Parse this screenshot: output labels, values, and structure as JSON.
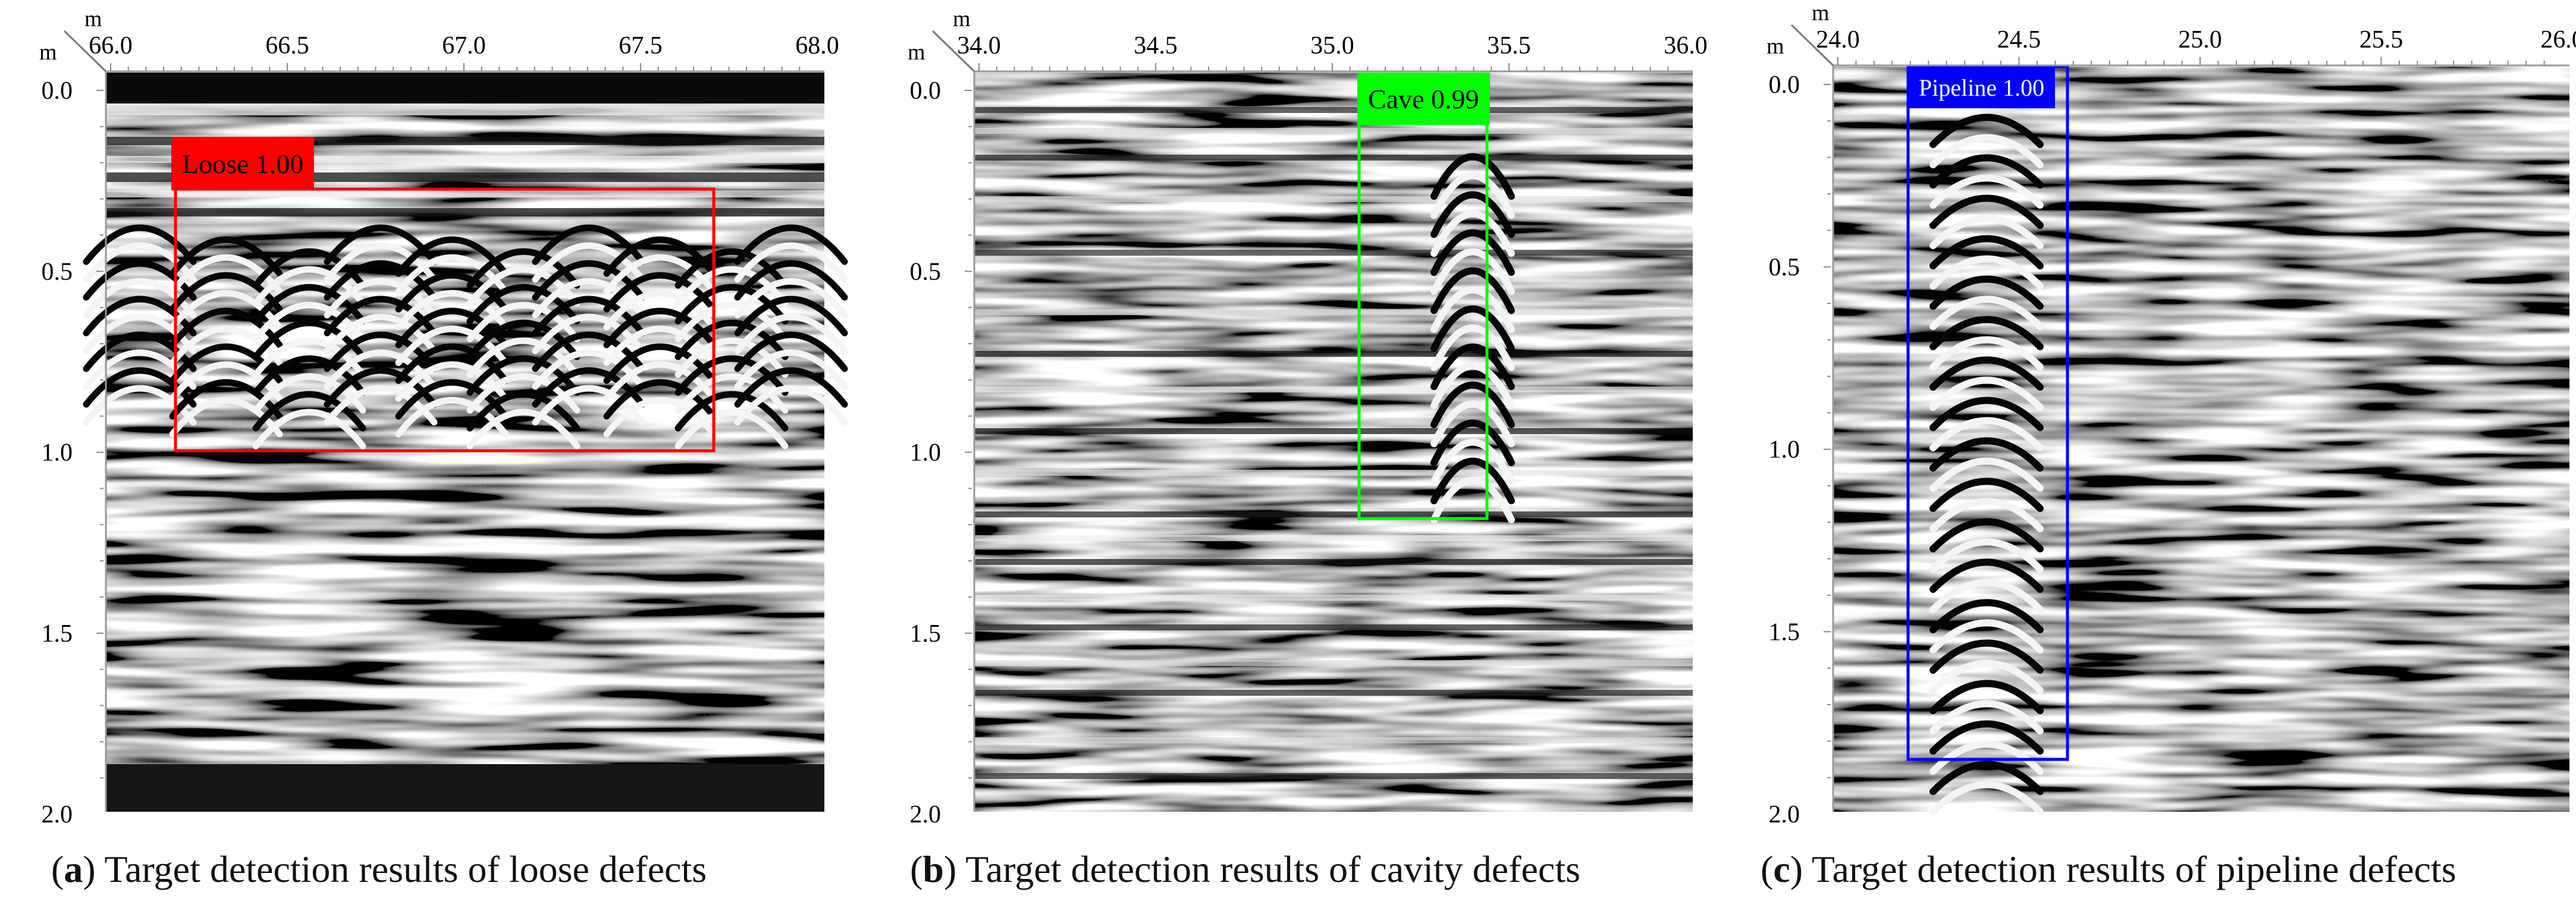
{
  "panels": [
    {
      "id": "a",
      "x_ticks": [
        "66.0",
        "66.5",
        "67.0",
        "67.5",
        "68.0"
      ],
      "y_ticks": [
        "0.0",
        "0.5",
        "1.0",
        "1.5",
        "2.0"
      ],
      "x_unit": "m",
      "y_unit": "m",
      "detection": {
        "label": "Loose 1.00",
        "color": "#ff0000",
        "text_color": "#000000"
      },
      "caption_letter": "a",
      "caption_text": "Target detection results of loose defects"
    },
    {
      "id": "b",
      "x_ticks": [
        "34.0",
        "34.5",
        "35.0",
        "35.5",
        "36.0"
      ],
      "y_ticks": [
        "0.0",
        "0.5",
        "1.0",
        "1.5",
        "2.0"
      ],
      "x_unit": "m",
      "y_unit": "m",
      "detection": {
        "label": "Cave 0.99",
        "color": "#00ff00",
        "text_color": "#000000"
      },
      "caption_letter": "b",
      "caption_text": "Target detection results of cavity defects"
    },
    {
      "id": "c",
      "x_ticks": [
        "24.0",
        "24.5",
        "25.0",
        "25.5",
        "26.0"
      ],
      "y_ticks": [
        "0.0",
        "0.5",
        "1.0",
        "1.5",
        "2.0"
      ],
      "x_unit": "m",
      "y_unit": "m",
      "detection": {
        "label": "Pipeline 1.00",
        "color": "#0000ff",
        "text_color": "#ffffff"
      },
      "caption_letter": "c",
      "caption_text": "Target detection results of pipeline defects"
    }
  ]
}
